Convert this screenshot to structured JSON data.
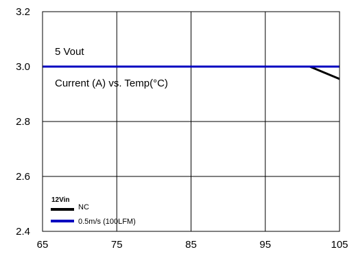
{
  "chart_data": {
    "type": "line",
    "title": "",
    "xlabel": "",
    "ylabel": "",
    "xlim": [
      65,
      105
    ],
    "ylim": [
      2.4,
      3.2
    ],
    "x_ticks": [
      "65",
      "75",
      "85",
      "95",
      "105"
    ],
    "y_ticks": [
      "2.4",
      "2.6",
      "2.8",
      "3.0",
      "3.2"
    ],
    "grid": true,
    "annotations": [
      "5 Vout",
      "Current (A) vs. Temp(°C)"
    ],
    "legend": {
      "title": "12Vin",
      "position": "bottom-left",
      "entries": [
        "NC",
        "0.5m/s (100LFM)"
      ]
    },
    "series": [
      {
        "name": "NC",
        "color": "#000000",
        "x": [
          65,
          101,
          105
        ],
        "y": [
          3.0,
          3.0,
          2.955
        ]
      },
      {
        "name": "0.5m/s (100LFM)",
        "color": "#0000c0",
        "x": [
          65,
          105
        ],
        "y": [
          3.0,
          3.0
        ]
      }
    ]
  }
}
